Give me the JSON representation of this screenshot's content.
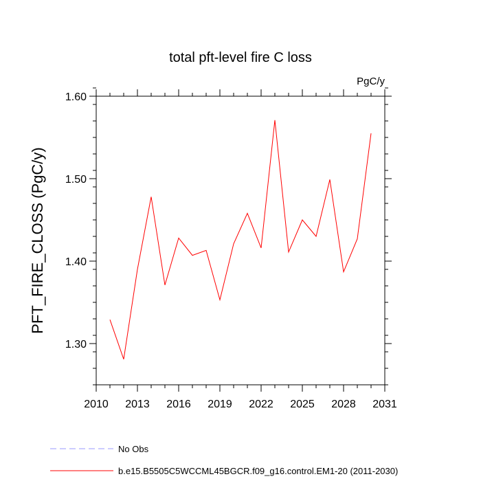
{
  "chart_data": {
    "type": "line",
    "title": "total pft-level fire C loss",
    "units_label": "PgC/y",
    "ylabel": "PFT_FIRE_CLOSS  (PgC/y)",
    "xlabel": "",
    "xlim": [
      2010,
      2031
    ],
    "ylim": [
      1.25,
      1.6
    ],
    "xticks": [
      2010,
      2013,
      2016,
      2019,
      2022,
      2025,
      2028,
      2031
    ],
    "yticks": [
      1.3,
      1.4,
      1.5,
      1.6
    ],
    "ytick_labels": [
      "1.30",
      "1.40",
      "1.50",
      "1.60"
    ],
    "series": [
      {
        "name": "b.e15.B5505C5WCCML45BGCR.f09_g16.control.EM1-20 (2011-2030)",
        "color": "#ff0000",
        "x": [
          2011,
          2012,
          2013,
          2014,
          2015,
          2016,
          2017,
          2018,
          2019,
          2020,
          2021,
          2022,
          2023,
          2024,
          2025,
          2026,
          2027,
          2028,
          2029,
          2030
        ],
        "values": [
          1.329,
          1.281,
          1.39,
          1.478,
          1.371,
          1.428,
          1.407,
          1.413,
          1.353,
          1.421,
          1.458,
          1.416,
          1.571,
          1.411,
          1.45,
          1.43,
          1.499,
          1.387,
          1.427,
          1.555
        ]
      }
    ],
    "legend": [
      {
        "label": "No Obs",
        "color": "#9999ff",
        "dashed": true
      },
      {
        "label": "b.e15.B5505C5WCCML45BGCR.f09_g16.control.EM1-20 (2011-2030)",
        "color": "#ff0000",
        "dashed": false
      }
    ]
  }
}
